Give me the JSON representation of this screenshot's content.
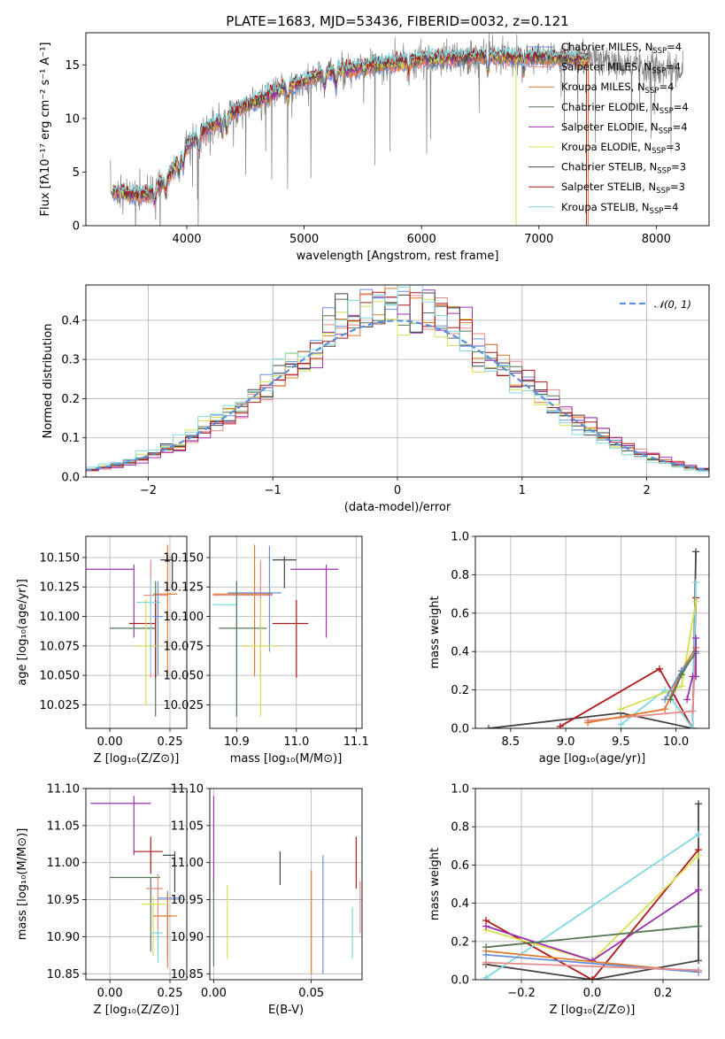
{
  "title": "PLATE=1683, MJD=53436, FIBERID=0032, z=0.121",
  "colors": {
    "Chabrier MILES": "#6a8fd8",
    "Salpeter MILES": "#e88a8a",
    "Kroupa MILES": "#e07b30",
    "Chabrier ELODIE": "#557755",
    "Salpeter ELODIE": "#9b30b0",
    "Kroupa ELODIE": "#d8e050",
    "Chabrier STELIB": "#444444",
    "Salpeter STELIB": "#b01818",
    "Kroupa STELIB": "#80d8e0",
    "data": "#808080",
    "normal": "#5b8fd8"
  },
  "legend_spectrum": [
    {
      "model": "Chabrier MILES",
      "label": "Chabrier MILES, N",
      "sub": "SSP",
      "n": "=4"
    },
    {
      "model": "Salpeter MILES",
      "label": "Salpeter MILES, N",
      "sub": "SSP",
      "n": "=4"
    },
    {
      "model": "Kroupa MILES",
      "label": "Kroupa MILES, N",
      "sub": "SSP",
      "n": "=4"
    },
    {
      "model": "Chabrier ELODIE",
      "label": "Chabrier ELODIE, N",
      "sub": "SSP",
      "n": "=4"
    },
    {
      "model": "Salpeter ELODIE",
      "label": "Salpeter ELODIE, N",
      "sub": "SSP",
      "n": "=4"
    },
    {
      "model": "Kroupa ELODIE",
      "label": "Kroupa ELODIE, N",
      "sub": "SSP",
      "n": "=3"
    },
    {
      "model": "Chabrier STELIB",
      "label": "Chabrier STELIB, N",
      "sub": "SSP",
      "n": "=3"
    },
    {
      "model": "Salpeter STELIB",
      "label": "Salpeter STELIB, N",
      "sub": "SSP",
      "n": "=3"
    },
    {
      "model": "Kroupa STELIB",
      "label": "Kroupa STELIB, N",
      "sub": "SSP",
      "n": "=4"
    }
  ],
  "chart_data": [
    {
      "id": "spectrum",
      "type": "line",
      "xlabel": "wavelength [Angstrom, rest frame]",
      "ylabel": "Flux [fλ10⁻¹⁷ erg cm⁻² s⁻¹ A⁻¹]",
      "xlim": [
        3140,
        8450
      ],
      "ylim": [
        0,
        18
      ],
      "xticks": [
        "4000",
        "5000",
        "6000",
        "7000",
        "8000"
      ],
      "yticks": [
        "0",
        "5",
        "10",
        "15"
      ],
      "grid": false,
      "legend": "top-right",
      "continuum_points": [
        [
          3350,
          3.2
        ],
        [
          3500,
          3.0
        ],
        [
          3650,
          2.8
        ],
        [
          3750,
          3.6
        ],
        [
          3850,
          4.6
        ],
        [
          3950,
          6.5
        ],
        [
          4050,
          8.0
        ],
        [
          4200,
          9.2
        ],
        [
          4400,
          10.6
        ],
        [
          4600,
          11.7
        ],
        [
          4800,
          12.7
        ],
        [
          5000,
          13.5
        ],
        [
          5200,
          14.3
        ],
        [
          5400,
          14.6
        ],
        [
          5600,
          14.9
        ],
        [
          5800,
          15.2
        ],
        [
          6000,
          15.5
        ],
        [
          6200,
          15.6
        ],
        [
          6400,
          15.7
        ],
        [
          6600,
          15.8
        ],
        [
          6800,
          15.7
        ],
        [
          7000,
          15.7
        ],
        [
          7200,
          15.6
        ],
        [
          7400,
          15.4
        ],
        [
          7600,
          15.2
        ],
        [
          7800,
          15.0
        ],
        [
          8000,
          14.8
        ],
        [
          8200,
          14.6
        ]
      ],
      "model_range": [
        3370,
        7420
      ],
      "data_range": [
        3350,
        8230
      ]
    },
    {
      "id": "residuals",
      "type": "histogram",
      "xlabel": "(data-model)/error",
      "ylabel": "Normed distribution",
      "xlim": [
        -2.5,
        2.5
      ],
      "ylim": [
        0,
        0.49
      ],
      "xticks": [
        "−2",
        "−1",
        "0",
        "1",
        "2"
      ],
      "yticks": [
        "0.0",
        "0.1",
        "0.2",
        "0.3",
        "0.4"
      ],
      "grid": true,
      "legend": "top-right",
      "legend_label": "𝒩(0, 1)",
      "bin_width": 0.1,
      "normal": {
        "mean": 0,
        "sd": 1
      }
    },
    {
      "id": "age-vs-Z",
      "type": "errorbar",
      "xlabel": "Z [log₁₀(Z/Z⊙)]",
      "ylabel": "age  [log₁₀(age/yr)]",
      "xlim": [
        -0.1,
        0.32
      ],
      "ylim": [
        10.005,
        10.168
      ],
      "xticks": [
        "0.00",
        "0.25"
      ],
      "yticks": [
        "10.025",
        "10.050",
        "10.075",
        "10.100",
        "10.125",
        "10.150"
      ],
      "grid": true,
      "points": [
        {
          "model": "Salpeter ELODIE",
          "x": 0.1,
          "xerr": [
            0.2,
            0.0
          ],
          "y": 10.14,
          "yerr": [
            0.058,
            0.004
          ]
        },
        {
          "model": "Chabrier STELIB",
          "x": 0.26,
          "xerr": [
            0.05,
            0.0
          ],
          "y": 10.148,
          "yerr": [
            0.024,
            0.003
          ]
        },
        {
          "model": "Salpeter MILES",
          "x": 0.17,
          "xerr": [
            0.03,
            0.07
          ],
          "y": 10.118,
          "yerr": [
            0.07,
            0.03
          ]
        },
        {
          "model": "Kroupa MILES",
          "x": 0.24,
          "xerr": [
            0.06,
            0.04
          ],
          "y": 10.119,
          "yerr": [
            0.07,
            0.042
          ]
        },
        {
          "model": "Chabrier ELODIE",
          "x": 0.19,
          "xerr": [
            0.19,
            0.0
          ],
          "y": 10.09,
          "yerr": [
            0.075,
            0.04
          ]
        },
        {
          "model": "Salpeter STELIB",
          "x": 0.19,
          "xerr": [
            0.11,
            0.0
          ],
          "y": 10.094,
          "yerr": [
            0.046,
            0.02
          ]
        },
        {
          "model": "Kroupa ELODIE",
          "x": 0.15,
          "xerr": [
            0.05,
            0.06
          ],
          "y": 10.075,
          "yerr": [
            0.05,
            0.04
          ]
        },
        {
          "model": "Kroupa STELIB",
          "x": 0.17,
          "xerr": [
            0.06,
            0.04
          ],
          "y": 10.112,
          "yerr": [
            0.06,
            0.02
          ]
        },
        {
          "model": "Chabrier MILES",
          "x": 0.2,
          "xerr": [
            0.02,
            0.02
          ],
          "y": 10.1,
          "yerr": [
            0.05,
            0.03
          ]
        }
      ]
    },
    {
      "id": "age-vs-mass",
      "type": "errorbar",
      "xlabel": "mass [log₁₀(M/M⊙)]",
      "ylabel": "",
      "xlim": [
        10.855,
        11.11
      ],
      "ylim": [
        10.005,
        10.168
      ],
      "xticks": [
        "10.9",
        "11.0",
        "11.1"
      ],
      "yticks": [
        "10.025",
        "10.050",
        "10.075",
        "10.100",
        "10.125",
        "10.150"
      ],
      "grid": true,
      "points": [
        {
          "model": "Salpeter ELODIE",
          "x": 11.05,
          "xerr": [
            0.06,
            0.02
          ],
          "y": 10.14,
          "yerr": [
            0.058,
            0.004
          ]
        },
        {
          "model": "Chabrier STELIB",
          "x": 10.98,
          "xerr": [
            0.02,
            0.02
          ],
          "y": 10.148,
          "yerr": [
            0.024,
            0.003
          ]
        },
        {
          "model": "Kroupa MILES",
          "x": 10.93,
          "xerr": [
            0.07,
            0.03
          ],
          "y": 10.119,
          "yerr": [
            0.07,
            0.042
          ]
        },
        {
          "model": "Salpeter MILES",
          "x": 10.94,
          "xerr": [
            0.08,
            0.02
          ],
          "y": 10.118,
          "yerr": [
            0.07,
            0.03
          ]
        },
        {
          "model": "Chabrier MILES",
          "x": 10.955,
          "xerr": [
            0.07,
            0.02
          ],
          "y": 10.12,
          "yerr": [
            0.05,
            0.04
          ]
        },
        {
          "model": "Kroupa STELIB",
          "x": 10.9,
          "xerr": [
            0.04,
            0.0
          ],
          "y": 10.11,
          "yerr": [
            0.06,
            0.02
          ]
        },
        {
          "model": "Chabrier ELODIE",
          "x": 10.9,
          "xerr": [
            0.03,
            0.05
          ],
          "y": 10.09,
          "yerr": [
            0.075,
            0.04
          ]
        },
        {
          "model": "Salpeter STELIB",
          "x": 11.0,
          "xerr": [
            0.04,
            0.02
          ],
          "y": 10.094,
          "yerr": [
            0.046,
            0.02
          ]
        },
        {
          "model": "Kroupa ELODIE",
          "x": 10.94,
          "xerr": [
            0.03,
            0.03
          ],
          "y": 10.075,
          "yerr": [
            0.06,
            0.04
          ]
        }
      ]
    },
    {
      "id": "massweight-vs-age",
      "type": "line",
      "xlabel": "age  [log₁₀(age/yr)]",
      "ylabel": "mass weight",
      "xlim": [
        8.18,
        10.3
      ],
      "ylim": [
        0,
        1
      ],
      "xticks": [
        "8.5",
        "9.0",
        "9.5",
        "10.0"
      ],
      "yticks": [
        "0.0",
        "0.2",
        "0.4",
        "0.6",
        "0.8",
        "1.0"
      ],
      "grid": true,
      "series": [
        {
          "model": "Chabrier STELIB",
          "x": [
            8.3,
            9.5,
            10.15,
            10.18
          ],
          "y": [
            0.0,
            0.08,
            0.0,
            0.92
          ]
        },
        {
          "model": "Salpeter STELIB",
          "x": [
            8.95,
            9.85,
            10.15,
            10.18
          ],
          "y": [
            0.01,
            0.31,
            0.0,
            0.68
          ]
        },
        {
          "model": "Kroupa STELIB",
          "x": [
            9.5,
            9.9,
            10.15,
            10.18
          ],
          "y": [
            0.02,
            0.2,
            0.0,
            0.76
          ]
        },
        {
          "model": "Kroupa ELODIE",
          "x": [
            9.5,
            10.05,
            10.18
          ],
          "y": [
            0.1,
            0.22,
            0.66
          ]
        },
        {
          "model": "Salpeter MILES",
          "x": [
            9.2,
            10.15,
            10.18
          ],
          "y": [
            0.04,
            0.09,
            0.4
          ]
        },
        {
          "model": "Kroupa MILES",
          "x": [
            9.2,
            9.9,
            10.05,
            10.18
          ],
          "y": [
            0.03,
            0.1,
            0.3,
            0.42
          ]
        },
        {
          "model": "Chabrier MILES",
          "x": [
            9.9,
            10.05,
            10.18
          ],
          "y": [
            0.15,
            0.3,
            0.39
          ]
        },
        {
          "model": "Chabrier ELODIE",
          "x": [
            9.95,
            10.05,
            10.18
          ],
          "y": [
            0.15,
            0.28,
            0.4
          ]
        },
        {
          "model": "Salpeter ELODIE",
          "x": [
            10.1,
            10.15,
            10.18,
            10.18
          ],
          "y": [
            0.15,
            0.27,
            0.27,
            0.47
          ]
        }
      ]
    },
    {
      "id": "mass-vs-Z",
      "type": "errorbar",
      "xlabel": "Z [log₁₀(Z/Z⊙)]",
      "ylabel": "mass [log₁₀(M/M⊙)]",
      "xlim": [
        -0.1,
        0.32
      ],
      "ylim": [
        10.842,
        11.1
      ],
      "xticks": [
        "0.00",
        "0.25"
      ],
      "yticks": [
        "10.85",
        "10.90",
        "10.95",
        "11.00",
        "11.05",
        "11.10"
      ],
      "grid": true,
      "points": [
        {
          "model": "Salpeter ELODIE",
          "x": 0.1,
          "xerr": [
            0.18,
            0.07
          ],
          "y": 11.08,
          "yerr": [
            0.07,
            0.01
          ]
        },
        {
          "model": "Salpeter STELIB",
          "x": 0.17,
          "xerr": [
            0.07,
            0.05
          ],
          "y": 11.015,
          "yerr": [
            0.03,
            0.02
          ]
        },
        {
          "model": "Chabrier STELIB",
          "x": 0.27,
          "xerr": [
            0.05,
            0.0
          ],
          "y": 11.01,
          "yerr": [
            0.05,
            0.005
          ]
        },
        {
          "model": "Chabrier ELODIE",
          "x": 0.17,
          "xerr": [
            0.17,
            0.04
          ],
          "y": 10.98,
          "yerr": [
            0.1,
            0.0
          ]
        },
        {
          "model": "Salpeter MILES",
          "x": 0.2,
          "xerr": [
            0.05,
            0.02
          ],
          "y": 10.965,
          "yerr": [
            0.08,
            0.02
          ]
        },
        {
          "model": "Chabrier MILES",
          "x": 0.24,
          "xerr": [
            0.04,
            0.06
          ],
          "y": 10.952,
          "yerr": [
            0.08,
            0.01
          ]
        },
        {
          "model": "Kroupa ELODIE",
          "x": 0.18,
          "xerr": [
            0.05,
            0.05
          ],
          "y": 10.944,
          "yerr": [
            0.07,
            0.01
          ]
        },
        {
          "model": "Kroupa MILES",
          "x": 0.24,
          "xerr": [
            0.06,
            0.04
          ],
          "y": 10.928,
          "yerr": [
            0.07,
            0.03
          ]
        },
        {
          "model": "Kroupa STELIB",
          "x": 0.2,
          "xerr": [
            0.03,
            0.02
          ],
          "y": 10.905,
          "yerr": [
            0.04,
            0.005
          ]
        }
      ]
    },
    {
      "id": "mass-vs-EBV",
      "type": "errorbar",
      "xlabel": "E(B-V)",
      "ylabel": "",
      "xlim": [
        -0.002,
        0.076
      ],
      "ylim": [
        10.842,
        11.1
      ],
      "xticks": [
        "0.00",
        "0.05"
      ],
      "yticks": [
        "10.85",
        "10.90",
        "10.95",
        "11.00",
        "11.05",
        "11.10"
      ],
      "grid": true,
      "points": [
        {
          "model": "Salpeter ELODIE",
          "x": 0.0,
          "y": 11.05,
          "yerr": [
            0.09,
            0.04
          ]
        },
        {
          "model": "Chabrier ELODIE",
          "x": 0.0,
          "y": 10.94,
          "yerr": [
            0.08,
            0.04
          ]
        },
        {
          "model": "Kroupa ELODIE",
          "x": 0.007,
          "y": 10.935,
          "yerr": [
            0.065,
            0.035
          ]
        },
        {
          "model": "Chabrier STELIB",
          "x": 0.034,
          "y": 11.0,
          "yerr": [
            0.03,
            0.015
          ]
        },
        {
          "model": "Kroupa MILES",
          "x": 0.05,
          "y": 10.94,
          "yerr": [
            0.09,
            0.05
          ]
        },
        {
          "model": "Chabrier MILES",
          "x": 0.056,
          "y": 10.95,
          "yerr": [
            0.1,
            0.06
          ]
        },
        {
          "model": "Kroupa STELIB",
          "x": 0.071,
          "y": 10.905,
          "yerr": [
            0.035,
            0.035
          ]
        },
        {
          "model": "Salpeter STELIB",
          "x": 0.073,
          "y": 11.0,
          "yerr": [
            0.035,
            0.035
          ]
        },
        {
          "model": "Salpeter MILES",
          "x": 0.075,
          "y": 10.94,
          "yerr": [
            0.035,
            0.035
          ]
        }
      ]
    },
    {
      "id": "massweight-vs-Z",
      "type": "line",
      "xlabel": "Z [log₁₀(Z/Z⊙)]",
      "ylabel": "mass weight",
      "xlim": [
        -0.33,
        0.33
      ],
      "ylim": [
        0,
        1
      ],
      "xticks": [
        "−0.2",
        "0.0",
        "0.2"
      ],
      "yticks": [
        "0.0",
        "0.2",
        "0.4",
        "0.6",
        "0.8",
        "1.0"
      ],
      "grid": true,
      "series": [
        {
          "model": "Chabrier STELIB",
          "x": [
            -0.3,
            0.0,
            0.3,
            0.3
          ],
          "y": [
            0.08,
            0.0,
            0.1,
            0.92
          ]
        },
        {
          "model": "Salpeter STELIB",
          "x": [
            -0.3,
            0.0,
            0.3
          ],
          "y": [
            0.31,
            0.0,
            0.68
          ]
        },
        {
          "model": "Kroupa STELIB",
          "x": [
            -0.3,
            0.3
          ],
          "y": [
            0.01,
            0.76
          ]
        },
        {
          "model": "Kroupa ELODIE",
          "x": [
            -0.3,
            0.0,
            0.3
          ],
          "y": [
            0.26,
            0.1,
            0.65
          ]
        },
        {
          "model": "Salpeter ELODIE",
          "x": [
            -0.3,
            0.0,
            0.3
          ],
          "y": [
            0.28,
            0.1,
            0.47
          ]
        },
        {
          "model": "Chabrier ELODIE",
          "x": [
            -0.3,
            0.3
          ],
          "y": [
            0.17,
            0.28
          ]
        },
        {
          "model": "Kroupa MILES",
          "x": [
            -0.3,
            0.3
          ],
          "y": [
            0.15,
            0.04
          ]
        },
        {
          "model": "Chabrier MILES",
          "x": [
            -0.3,
            0.3
          ],
          "y": [
            0.13,
            0.04
          ]
        },
        {
          "model": "Salpeter MILES",
          "x": [
            -0.3,
            0.3
          ],
          "y": [
            0.09,
            0.05
          ]
        }
      ]
    }
  ]
}
